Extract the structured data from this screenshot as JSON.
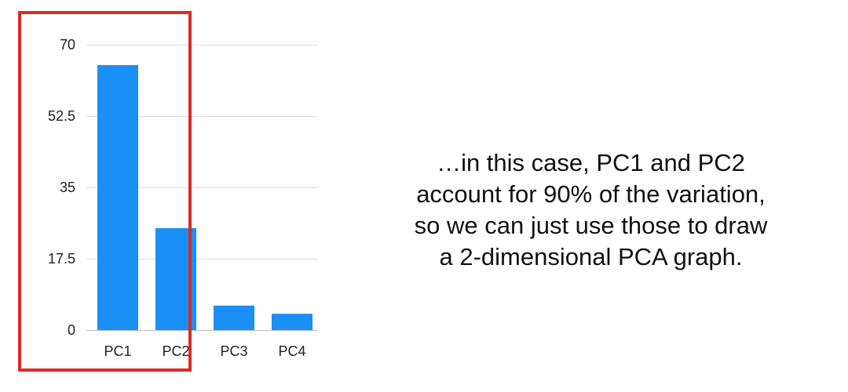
{
  "chart_data": {
    "type": "bar",
    "title": "",
    "xlabel": "",
    "ylabel": "",
    "categories": [
      "PC1",
      "PC2",
      "PC3",
      "PC4"
    ],
    "values": [
      65,
      25,
      6,
      4
    ],
    "ylim": [
      0,
      70
    ],
    "yticks": [
      0,
      17.5,
      35,
      52.5,
      70
    ],
    "ytick_labels": [
      "0",
      "17.5",
      "35",
      "52.5",
      "70"
    ],
    "grid": true,
    "bar_color": "#1a8ff5",
    "highlight": {
      "categories": [
        "PC1",
        "PC2"
      ],
      "color": "#dc2a26"
    }
  },
  "caption": {
    "lines": [
      "…in this case, PC1 and PC2",
      "account for 90% of the variation,",
      "so we can just use those to draw",
      "a 2-dimensional PCA graph."
    ]
  }
}
